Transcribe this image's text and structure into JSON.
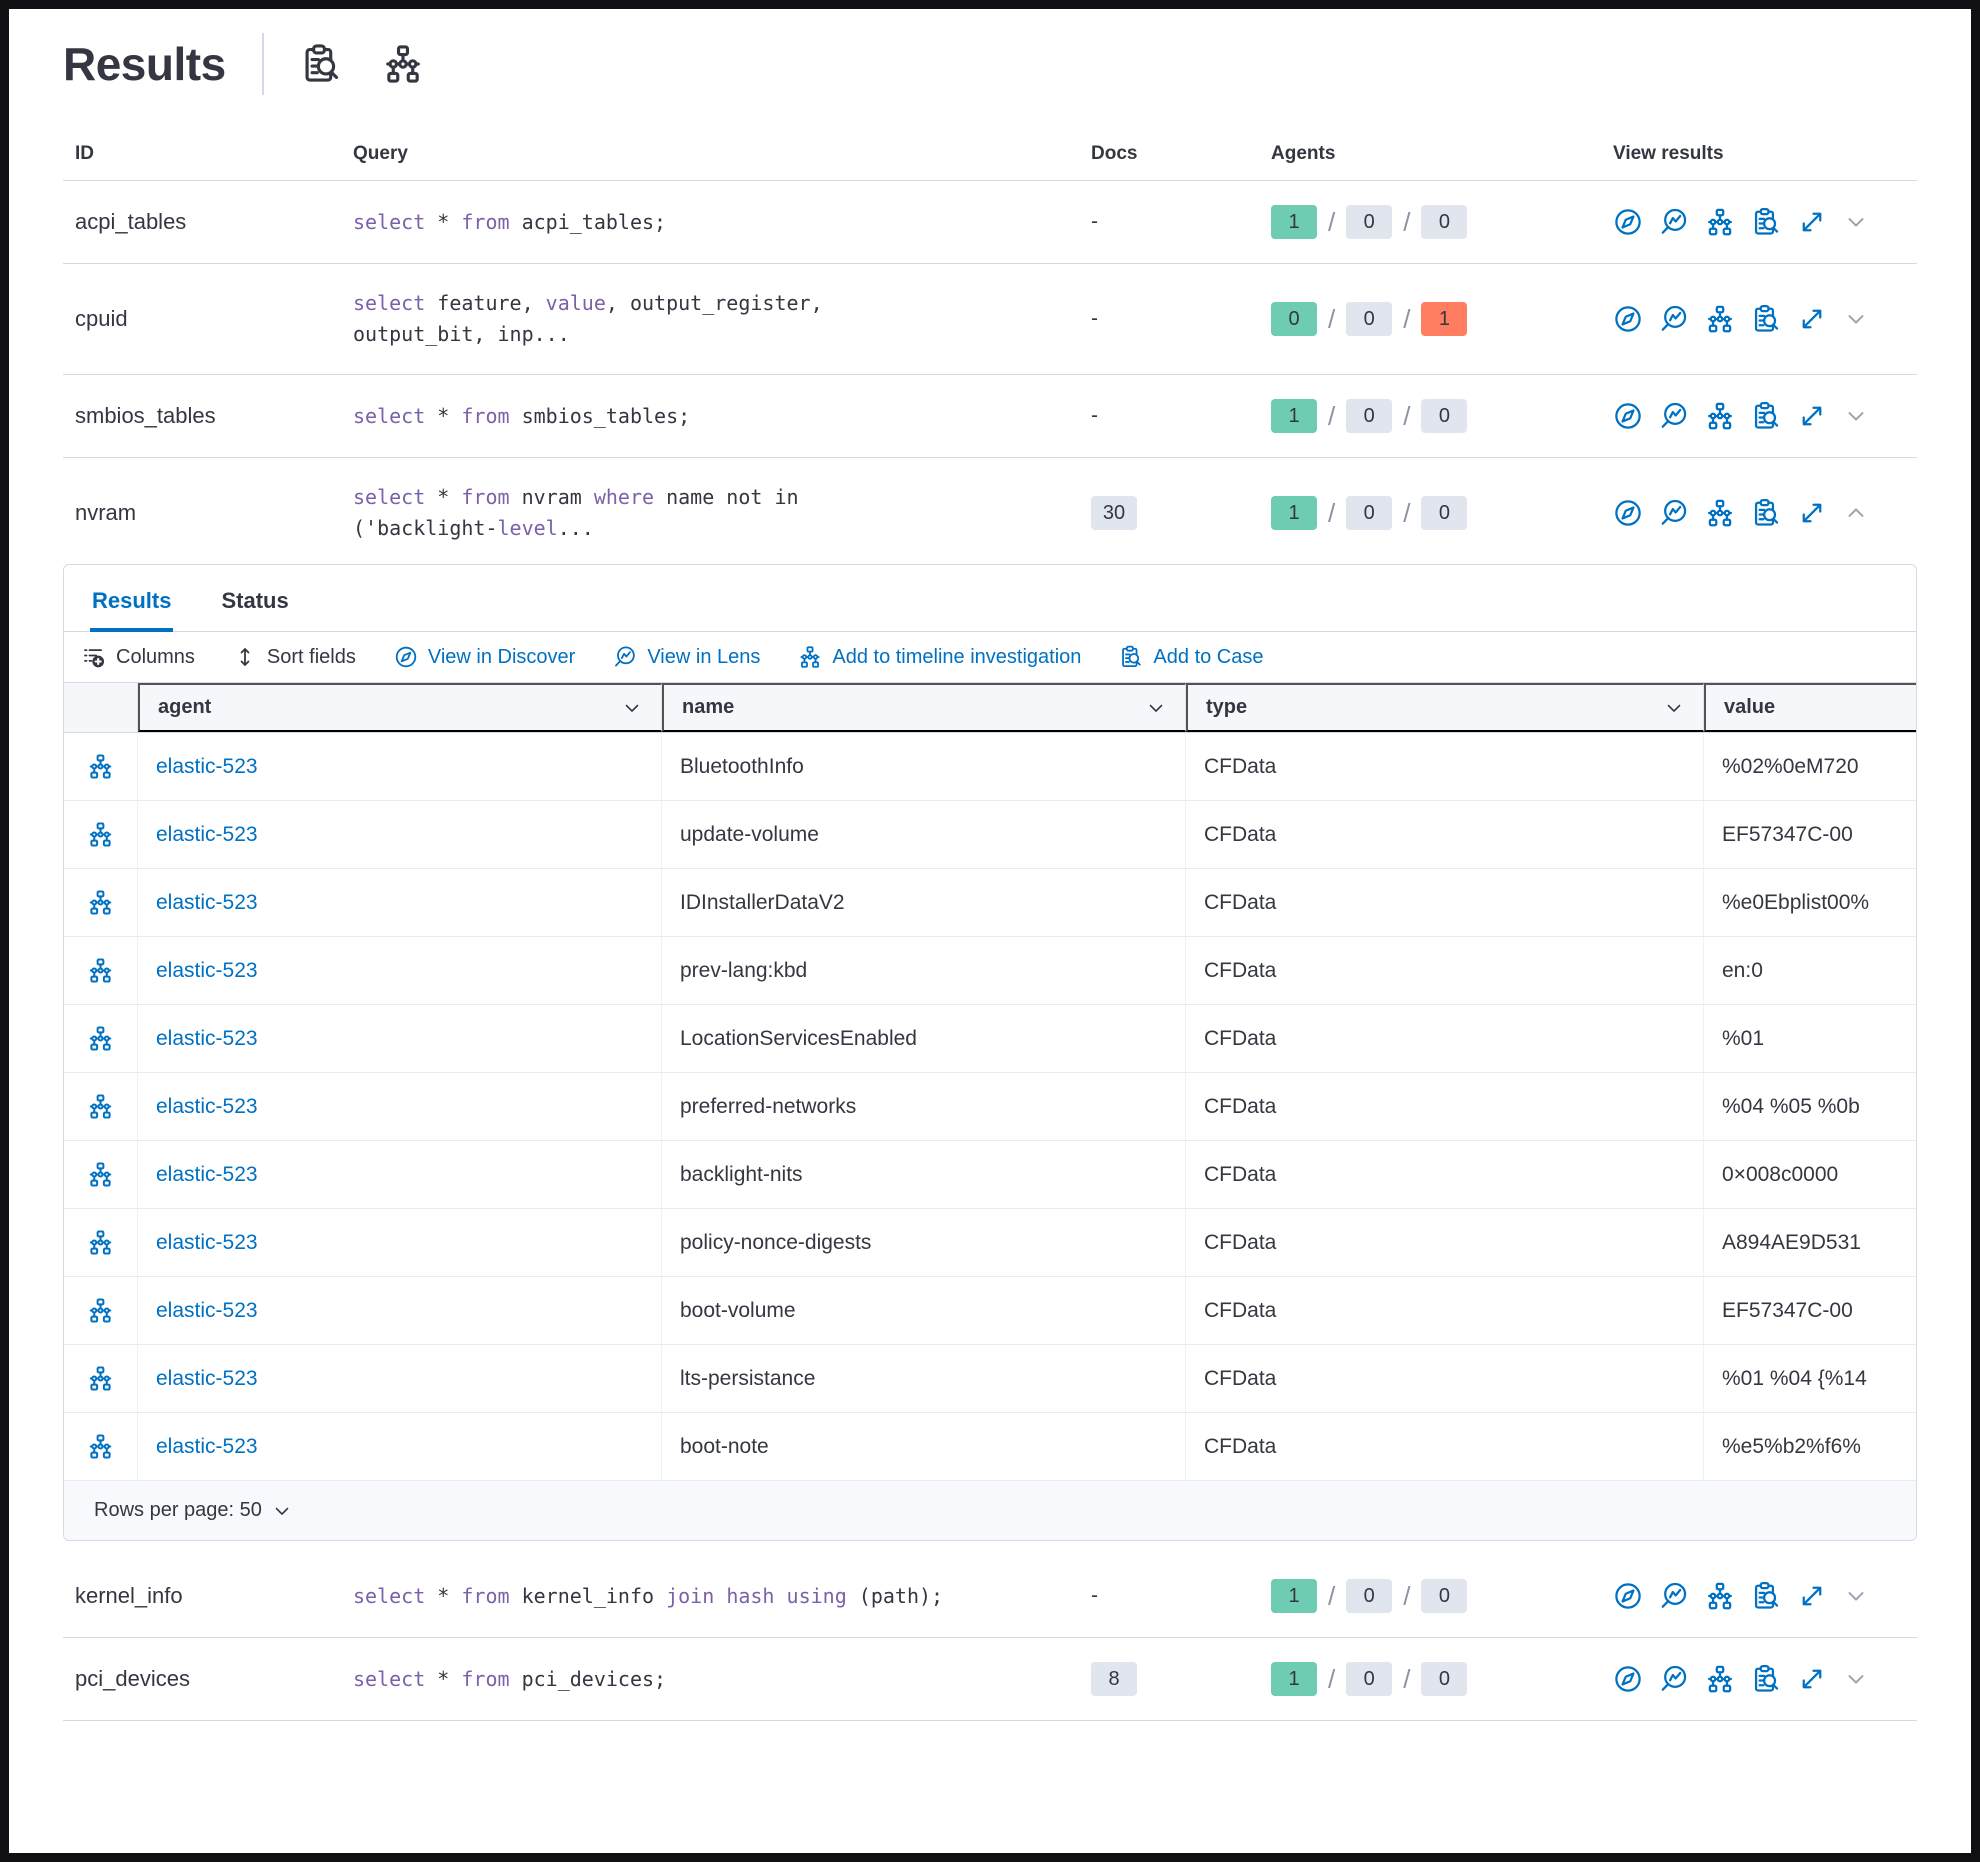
{
  "header": {
    "title": "Results",
    "icon_names": [
      "live-query-details",
      "timeline"
    ]
  },
  "colors": {
    "primary": "#0071c2",
    "success_badge": "#6dccb1",
    "neutral_badge": "#e0e5ee",
    "danger_badge": "#ff7e62",
    "code_keyword": "#7b61a8",
    "text": "#343741"
  },
  "query_table": {
    "columns": {
      "id": "ID",
      "query": "Query",
      "docs": "Docs",
      "agents": "Agents",
      "view_results": "View results"
    },
    "row_actions": [
      "view-in-discover",
      "view-in-lens",
      "add-to-timeline",
      "add-to-case",
      "expand-results"
    ],
    "rows": [
      {
        "id": "acpi_tables",
        "query_lines": [
          [
            {
              "t": "select",
              "k": true
            },
            {
              "t": " * ",
              "k": false
            },
            {
              "t": "from",
              "k": true
            },
            {
              "t": " acpi_tables;",
              "k": false
            }
          ]
        ],
        "docs": {
          "text": "-",
          "badge": false
        },
        "agents": [
          {
            "value": "1",
            "status": "success"
          },
          {
            "value": "0",
            "status": "neutral"
          },
          {
            "value": "0",
            "status": "neutral"
          }
        ],
        "expanded": false
      },
      {
        "id": "cpuid",
        "query_lines": [
          [
            {
              "t": "select",
              "k": true
            },
            {
              "t": " feature, ",
              "k": false
            },
            {
              "t": "value",
              "k": true
            },
            {
              "t": ", output_register,",
              "k": false
            }
          ],
          [
            {
              "t": "output_bit, inp...",
              "k": false
            }
          ]
        ],
        "docs": {
          "text": "-",
          "badge": false
        },
        "agents": [
          {
            "value": "0",
            "status": "success"
          },
          {
            "value": "0",
            "status": "neutral"
          },
          {
            "value": "1",
            "status": "danger"
          }
        ],
        "expanded": false
      },
      {
        "id": "smbios_tables",
        "query_lines": [
          [
            {
              "t": "select",
              "k": true
            },
            {
              "t": " * ",
              "k": false
            },
            {
              "t": "from",
              "k": true
            },
            {
              "t": " smbios_tables;",
              "k": false
            }
          ]
        ],
        "docs": {
          "text": "-",
          "badge": false
        },
        "agents": [
          {
            "value": "1",
            "status": "success"
          },
          {
            "value": "0",
            "status": "neutral"
          },
          {
            "value": "0",
            "status": "neutral"
          }
        ],
        "expanded": false
      },
      {
        "id": "nvram",
        "query_lines": [
          [
            {
              "t": "select",
              "k": true
            },
            {
              "t": " * ",
              "k": false
            },
            {
              "t": "from",
              "k": true
            },
            {
              "t": " nvram ",
              "k": false
            },
            {
              "t": "where",
              "k": true
            },
            {
              "t": " name not in",
              "k": false
            }
          ],
          [
            {
              "t": "('backlight-",
              "k": false
            },
            {
              "t": "level",
              "k": true
            },
            {
              "t": "...",
              "k": false
            }
          ]
        ],
        "docs": {
          "text": "30",
          "badge": true
        },
        "agents": [
          {
            "value": "1",
            "status": "success"
          },
          {
            "value": "0",
            "status": "neutral"
          },
          {
            "value": "0",
            "status": "neutral"
          }
        ],
        "expanded": true
      },
      {
        "id": "kernel_info",
        "query_lines": [
          [
            {
              "t": "select",
              "k": true
            },
            {
              "t": " * ",
              "k": false
            },
            {
              "t": "from",
              "k": true
            },
            {
              "t": " kernel_info ",
              "k": false
            },
            {
              "t": "join",
              "k": true
            },
            {
              "t": " ",
              "k": false
            },
            {
              "t": "hash",
              "k": true
            },
            {
              "t": " ",
              "k": false
            },
            {
              "t": "using",
              "k": true
            },
            {
              "t": " (path);",
              "k": false
            }
          ]
        ],
        "docs": {
          "text": "-",
          "badge": false
        },
        "agents": [
          {
            "value": "1",
            "status": "success"
          },
          {
            "value": "0",
            "status": "neutral"
          },
          {
            "value": "0",
            "status": "neutral"
          }
        ],
        "expanded": false
      },
      {
        "id": "pci_devices",
        "query_lines": [
          [
            {
              "t": "select",
              "k": true
            },
            {
              "t": " * ",
              "k": false
            },
            {
              "t": "from",
              "k": true
            },
            {
              "t": " pci_devices;",
              "k": false
            }
          ]
        ],
        "docs": {
          "text": "8",
          "badge": true
        },
        "agents": [
          {
            "value": "1",
            "status": "success"
          },
          {
            "value": "0",
            "status": "neutral"
          },
          {
            "value": "0",
            "status": "neutral"
          }
        ],
        "expanded": false
      }
    ]
  },
  "results_panel": {
    "tabs": [
      {
        "label": "Results",
        "active": true
      },
      {
        "label": "Status",
        "active": false
      }
    ],
    "toolbar": [
      {
        "label": "Columns",
        "icon": "columns",
        "style": "plain"
      },
      {
        "label": "Sort fields",
        "icon": "sort",
        "style": "plain"
      },
      {
        "label": "View in Discover",
        "icon": "discover",
        "style": "link"
      },
      {
        "label": "View in Lens",
        "icon": "lens",
        "style": "link"
      },
      {
        "label": "Add to timeline investigation",
        "icon": "timeline",
        "style": "link"
      },
      {
        "label": "Add to Case",
        "icon": "case",
        "style": "link"
      }
    ],
    "grid": {
      "columns": [
        {
          "label": "agent",
          "sortable": true
        },
        {
          "label": "name",
          "sortable": true
        },
        {
          "label": "type",
          "sortable": true
        },
        {
          "label": "value",
          "sortable": false
        }
      ],
      "rows": [
        {
          "agent": "elastic-523",
          "name": "BluetoothInfo",
          "type": "CFData",
          "value": "%02%0eM720"
        },
        {
          "agent": "elastic-523",
          "name": "update-volume",
          "type": "CFData",
          "value": "EF57347C-00"
        },
        {
          "agent": "elastic-523",
          "name": "IDInstallerDataV2",
          "type": "CFData",
          "value": "%e0Ebplist00%"
        },
        {
          "agent": "elastic-523",
          "name": "prev-lang:kbd",
          "type": "CFData",
          "value": "en:0"
        },
        {
          "agent": "elastic-523",
          "name": "LocationServicesEnabled",
          "type": "CFData",
          "value": "%01"
        },
        {
          "agent": "elastic-523",
          "name": "preferred-networks",
          "type": "CFData",
          "value": "%04 %05 %0b"
        },
        {
          "agent": "elastic-523",
          "name": "backlight-nits",
          "type": "CFData",
          "value": "0×008c0000"
        },
        {
          "agent": "elastic-523",
          "name": "policy-nonce-digests",
          "type": "CFData",
          "value": "A894AE9D531"
        },
        {
          "agent": "elastic-523",
          "name": "boot-volume",
          "type": "CFData",
          "value": "EF57347C-00"
        },
        {
          "agent": "elastic-523",
          "name": "lts-persistance",
          "type": "CFData",
          "value": "%01 %04 {%14"
        },
        {
          "agent": "elastic-523",
          "name": "boot-note",
          "type": "CFData",
          "value": "%e5%b2%f6%"
        }
      ]
    },
    "footer": {
      "rows_per_page_label": "Rows per page: 50"
    }
  }
}
